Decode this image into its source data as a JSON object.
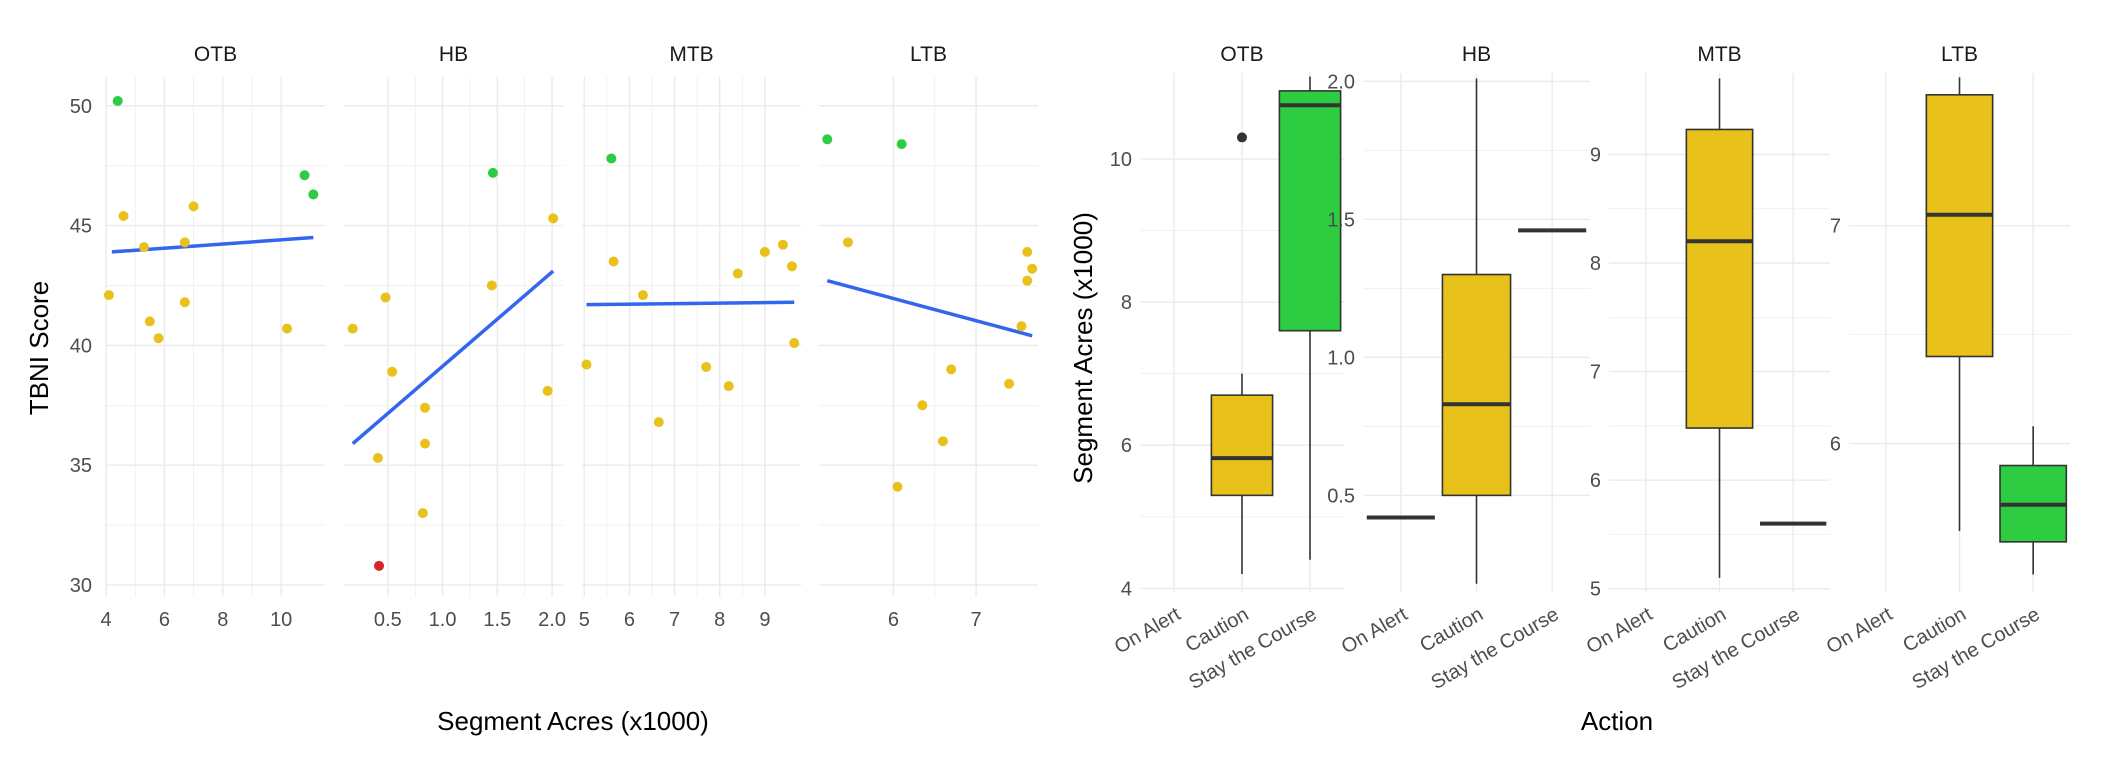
{
  "colors": {
    "on_alert": "#d62728",
    "caution": "#e8c21a",
    "stay_the_course": "#2ecc40",
    "trend_line": "#3366ee",
    "grid": "#ebebeb",
    "box_line": "#333333"
  },
  "chart_data": [
    {
      "type": "scatter",
      "xlabel": "Segment Acres (x1000)",
      "ylabel": "TBNI Score",
      "ylim": [
        29.5,
        51.2
      ],
      "y_ticks": [
        30,
        35,
        40,
        45,
        50
      ],
      "grid": true,
      "legend": "none",
      "facets": [
        {
          "label": "OTB",
          "xlim": [
            4.0,
            11.5
          ],
          "x_ticks": [
            4,
            6,
            8,
            10
          ],
          "points": [
            {
              "x": 4.1,
              "y": 42.1,
              "action": "Caution"
            },
            {
              "x": 4.4,
              "y": 50.2,
              "action": "Stay the Course"
            },
            {
              "x": 4.6,
              "y": 45.4,
              "action": "Caution"
            },
            {
              "x": 5.3,
              "y": 44.1,
              "action": "Caution"
            },
            {
              "x": 5.5,
              "y": 41.0,
              "action": "Caution"
            },
            {
              "x": 5.8,
              "y": 40.3,
              "action": "Caution"
            },
            {
              "x": 6.7,
              "y": 41.8,
              "action": "Caution"
            },
            {
              "x": 6.7,
              "y": 44.3,
              "action": "Caution"
            },
            {
              "x": 7.0,
              "y": 45.8,
              "action": "Caution"
            },
            {
              "x": 10.2,
              "y": 40.7,
              "action": "Caution"
            },
            {
              "x": 10.8,
              "y": 47.1,
              "action": "Stay the Course"
            },
            {
              "x": 11.1,
              "y": 46.3,
              "action": "Stay the Course"
            }
          ],
          "trend": {
            "x": [
              4.2,
              11.1
            ],
            "y": [
              43.9,
              44.5
            ]
          }
        },
        {
          "label": "HB",
          "xlim": [
            0.1,
            2.1
          ],
          "x_ticks": [
            0.5,
            1.0,
            1.5,
            2.0
          ],
          "x_tick_labels": [
            "0.5",
            "1.0",
            "1.5",
            "2.0"
          ],
          "points": [
            {
              "x": 0.18,
              "y": 40.7,
              "action": "Caution"
            },
            {
              "x": 0.41,
              "y": 35.3,
              "action": "Caution"
            },
            {
              "x": 0.42,
              "y": 30.8,
              "action": "On Alert"
            },
            {
              "x": 0.48,
              "y": 42.0,
              "action": "Caution"
            },
            {
              "x": 0.54,
              "y": 38.9,
              "action": "Caution"
            },
            {
              "x": 0.82,
              "y": 33.0,
              "action": "Caution"
            },
            {
              "x": 0.84,
              "y": 37.4,
              "action": "Caution"
            },
            {
              "x": 0.84,
              "y": 35.9,
              "action": "Caution"
            },
            {
              "x": 1.45,
              "y": 42.5,
              "action": "Caution"
            },
            {
              "x": 1.46,
              "y": 47.2,
              "action": "Stay the Course"
            },
            {
              "x": 1.96,
              "y": 38.1,
              "action": "Caution"
            },
            {
              "x": 2.01,
              "y": 45.3,
              "action": "Caution"
            }
          ],
          "trend": {
            "x": [
              0.18,
              2.01
            ],
            "y": [
              35.9,
              43.1
            ]
          }
        },
        {
          "label": "MTB",
          "xlim": [
            4.95,
            9.8
          ],
          "x_ticks": [
            5,
            6,
            7,
            8,
            9
          ],
          "points": [
            {
              "x": 5.05,
              "y": 39.2,
              "action": "Caution"
            },
            {
              "x": 5.6,
              "y": 47.8,
              "action": "Stay the Course"
            },
            {
              "x": 5.65,
              "y": 43.5,
              "action": "Caution"
            },
            {
              "x": 6.3,
              "y": 42.1,
              "action": "Caution"
            },
            {
              "x": 6.65,
              "y": 36.8,
              "action": "Caution"
            },
            {
              "x": 7.7,
              "y": 39.1,
              "action": "Caution"
            },
            {
              "x": 8.2,
              "y": 38.3,
              "action": "Caution"
            },
            {
              "x": 8.4,
              "y": 43.0,
              "action": "Caution"
            },
            {
              "x": 9.0,
              "y": 43.9,
              "action": "Caution"
            },
            {
              "x": 9.4,
              "y": 44.2,
              "action": "Caution"
            },
            {
              "x": 9.6,
              "y": 43.3,
              "action": "Caution"
            },
            {
              "x": 9.65,
              "y": 40.1,
              "action": "Caution"
            }
          ],
          "trend": {
            "x": [
              5.05,
              9.65
            ],
            "y": [
              41.7,
              41.8
            ]
          }
        },
        {
          "label": "LTB",
          "xlim": [
            5.1,
            7.75
          ],
          "x_ticks": [
            6,
            7
          ],
          "points": [
            {
              "x": 5.2,
              "y": 48.6,
              "action": "Stay the Course"
            },
            {
              "x": 5.45,
              "y": 44.3,
              "action": "Caution"
            },
            {
              "x": 6.05,
              "y": 34.1,
              "action": "Caution"
            },
            {
              "x": 6.1,
              "y": 48.4,
              "action": "Stay the Course"
            },
            {
              "x": 6.35,
              "y": 37.5,
              "action": "Caution"
            },
            {
              "x": 6.6,
              "y": 36.0,
              "action": "Caution"
            },
            {
              "x": 6.7,
              "y": 39.0,
              "action": "Caution"
            },
            {
              "x": 7.4,
              "y": 38.4,
              "action": "Caution"
            },
            {
              "x": 7.55,
              "y": 40.8,
              "action": "Caution"
            },
            {
              "x": 7.62,
              "y": 43.9,
              "action": "Caution"
            },
            {
              "x": 7.62,
              "y": 42.7,
              "action": "Caution"
            },
            {
              "x": 7.68,
              "y": 43.2,
              "action": "Caution"
            }
          ],
          "trend": {
            "x": [
              5.2,
              7.68
            ],
            "y": [
              42.7,
              40.4
            ]
          }
        }
      ]
    },
    {
      "type": "box",
      "xlabel": "Action",
      "ylabel": "Segment Acres (x1000)",
      "categories": [
        "On Alert",
        "Caution",
        "Stay the Course"
      ],
      "grid": true,
      "legend": "none",
      "facets": [
        {
          "label": "OTB",
          "ylim": [
            3.95,
            11.2
          ],
          "y_ticks": [
            4,
            6,
            8,
            10
          ],
          "y_tick_labels": [
            "4",
            "6",
            "8",
            "10"
          ],
          "boxes": [
            {
              "category": "Caution",
              "min": 4.2,
              "q1": 5.3,
              "median": 5.82,
              "q3": 6.7,
              "max": 7.0,
              "outliers": [
                10.3
              ]
            },
            {
              "category": "Stay the Course",
              "min": 4.4,
              "q1": 7.6,
              "median": 10.75,
              "q3": 10.95,
              "max": 11.15,
              "outliers": []
            }
          ]
        },
        {
          "label": "HB",
          "ylim": [
            0.15,
            2.03
          ],
          "y_ticks": [
            0.5,
            1.0,
            1.5,
            2.0
          ],
          "y_tick_labels": [
            "0.5",
            "1.0",
            "1.5",
            "2.0"
          ],
          "boxes": [
            {
              "category": "On Alert",
              "min": 0.42,
              "q1": 0.42,
              "median": 0.42,
              "q3": 0.42,
              "max": 0.42,
              "outliers": []
            },
            {
              "category": "Caution",
              "min": 0.18,
              "q1": 0.5,
              "median": 0.83,
              "q3": 1.3,
              "max": 2.01,
              "outliers": []
            },
            {
              "category": "Stay the Course",
              "min": 1.46,
              "q1": 1.46,
              "median": 1.46,
              "q3": 1.46,
              "max": 1.46,
              "outliers": []
            }
          ]
        },
        {
          "label": "MTB",
          "ylim": [
            4.97,
            9.75
          ],
          "y_ticks": [
            5,
            6,
            7,
            8,
            9
          ],
          "y_tick_labels": [
            "5",
            "6",
            "7",
            "8",
            "9"
          ],
          "boxes": [
            {
              "category": "Caution",
              "min": 5.1,
              "q1": 6.48,
              "median": 8.2,
              "q3": 9.23,
              "max": 9.7,
              "outliers": []
            },
            {
              "category": "Stay the Course",
              "min": 5.6,
              "q1": 5.6,
              "median": 5.6,
              "q3": 5.6,
              "max": 5.6,
              "outliers": []
            }
          ]
        },
        {
          "label": "LTB",
          "ylim": [
            5.32,
            7.7
          ],
          "y_ticks": [
            6,
            7
          ],
          "y_tick_labels": [
            "6",
            "7"
          ],
          "boxes": [
            {
              "category": "Caution",
              "min": 5.6,
              "q1": 6.4,
              "median": 7.05,
              "q3": 7.6,
              "max": 7.68,
              "outliers": []
            },
            {
              "category": "Stay the Course",
              "min": 5.4,
              "q1": 5.55,
              "median": 5.72,
              "q3": 5.9,
              "max": 6.08,
              "outliers": []
            }
          ]
        }
      ]
    }
  ]
}
